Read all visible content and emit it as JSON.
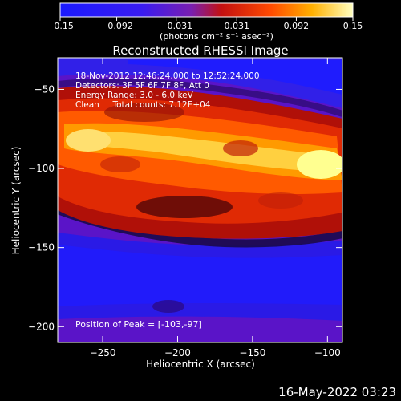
{
  "chart_data": {
    "type": "heatmap",
    "title": "Reconstructed RHESSI Image",
    "xlabel": "Heliocentric X (arcsec)",
    "ylabel": "Heliocentric Y (arcsec)",
    "xlim": [
      -280,
      -90
    ],
    "ylim": [
      -210,
      -30
    ],
    "x_ticks": [
      -250,
      -200,
      -150,
      -100
    ],
    "y_ticks": [
      -50,
      -100,
      -150,
      -200
    ],
    "colorbar": {
      "range": [
        -0.15,
        0.15
      ],
      "tick_labels": [
        "-0.15",
        "-0.092",
        "-0.031",
        "0.031",
        "0.092",
        "0.15"
      ],
      "unit_label": "(photons cm⁻² s⁻¹ asec⁻²)"
    },
    "annotations": [
      "18-Nov-2012 12:46:24.000 to 12:52:24.000",
      "Detectors: 3F 5F 6F 7F 8F, Att 0",
      "Energy Range: 3.0 - 6.0 keV",
      "Clean     Total counts: 7.12E+04"
    ],
    "peak_label": "Position of Peak = [-103,-97]",
    "peak": [
      -103,
      -97
    ],
    "colors": {
      "background": "#000000",
      "text": "#ffffff"
    }
  },
  "footer_date": "16-May-2022 03:23"
}
